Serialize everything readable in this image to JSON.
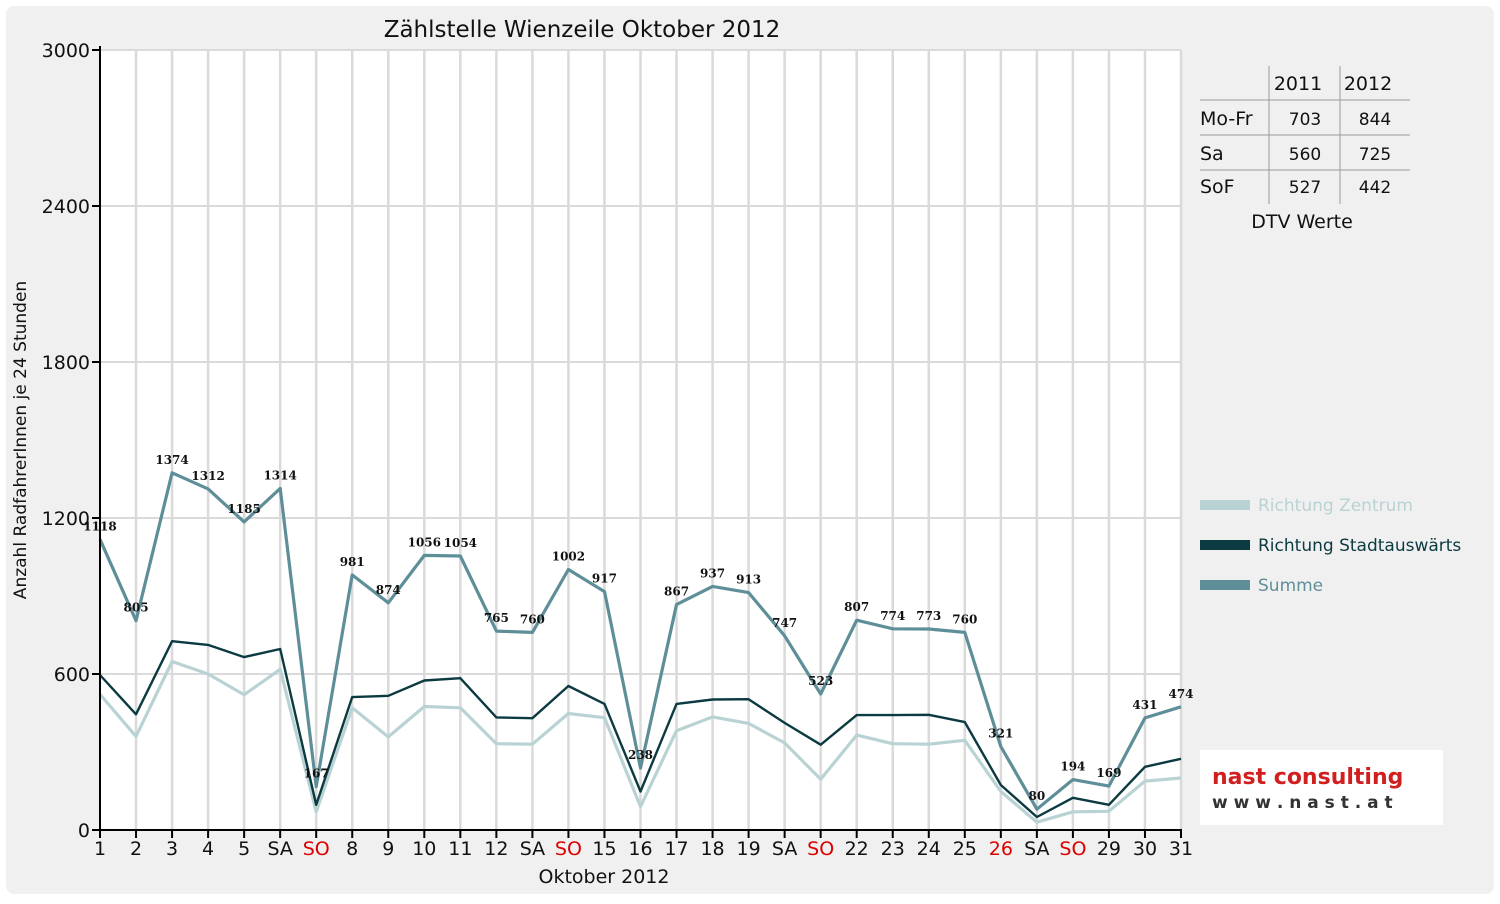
{
  "chart_data": {
    "type": "line",
    "title": "Zählstelle Wienzeile Oktober 2012",
    "xlabel": "Oktober 2012",
    "ylabel": "Anzahl RadfahrerInnen je 24 Stunden",
    "ylim": [
      0,
      3000
    ],
    "yticks": [
      "0",
      "600",
      "1200",
      "1800",
      "2400",
      "3000"
    ],
    "grid": true,
    "legend_position": "right",
    "categories": [
      "1",
      "2",
      "3",
      "4",
      "5",
      "SA",
      "SO",
      "8",
      "9",
      "10",
      "11",
      "12",
      "SA",
      "SO",
      "15",
      "16",
      "17",
      "18",
      "19",
      "SA",
      "SO",
      "22",
      "23",
      "24",
      "25",
      "26",
      "SA",
      "SO",
      "29",
      "30",
      "31"
    ],
    "highlight_categories": [
      6,
      13,
      20,
      25,
      27
    ],
    "colors": {
      "zentrum": "#b9d3d4",
      "stadtauswaerts": "#0b3a40",
      "summe": "#5e8f99",
      "holiday": "#dd0000",
      "grid": "#dadada",
      "background": "#f0f0f0"
    },
    "series": [
      {
        "name": "Richtung Zentrum",
        "values": [
          522,
          360,
          648,
          600,
          520,
          618,
          70,
          470,
          358,
          475,
          470,
          332,
          330,
          448,
          432,
          90,
          382,
          435,
          410,
          335,
          195,
          365,
          332,
          330,
          345,
          148,
          30,
          70,
          72,
          188,
          200
        ]
      },
      {
        "name": "Richtung Stadtauswärts",
        "values": [
          596,
          445,
          726,
          712,
          665,
          696,
          97,
          511,
          516,
          575,
          584,
          433,
          430,
          554,
          485,
          148,
          485,
          502,
          503,
          412,
          328,
          442,
          442,
          443,
          415,
          173,
          50,
          124,
          97,
          243,
          274
        ]
      },
      {
        "name": "Summe",
        "values": [
          1118,
          805,
          1374,
          1312,
          1185,
          1314,
          167,
          981,
          874,
          1056,
          1054,
          765,
          760,
          1002,
          917,
          238,
          867,
          937,
          913,
          747,
          523,
          807,
          774,
          773,
          760,
          321,
          80,
          194,
          169,
          431,
          474
        ]
      }
    ],
    "data_labels": [
      "1118",
      "805",
      "1374",
      "1312",
      "1185",
      "1314",
      "167",
      "981",
      "874",
      "1056",
      "1054",
      "765",
      "760",
      "1002",
      "917",
      "238",
      "867",
      "937",
      "913",
      "747",
      "523",
      "807",
      "774",
      "773",
      "760",
      "321",
      "80",
      "194",
      "169",
      "431",
      "474"
    ]
  },
  "dtv_table": {
    "headers": [
      "",
      "2011",
      "2012"
    ],
    "rows": [
      {
        "label": "Mo-Fr",
        "v2011": "703",
        "v2012": "844"
      },
      {
        "label": "Sa",
        "v2011": "560",
        "v2012": "725"
      },
      {
        "label": "SoF",
        "v2011": "527",
        "v2012": "442"
      }
    ],
    "caption": "DTV Werte"
  },
  "logo": {
    "line1": "nast consulting",
    "line2": "w w w . n a s t . a t"
  }
}
